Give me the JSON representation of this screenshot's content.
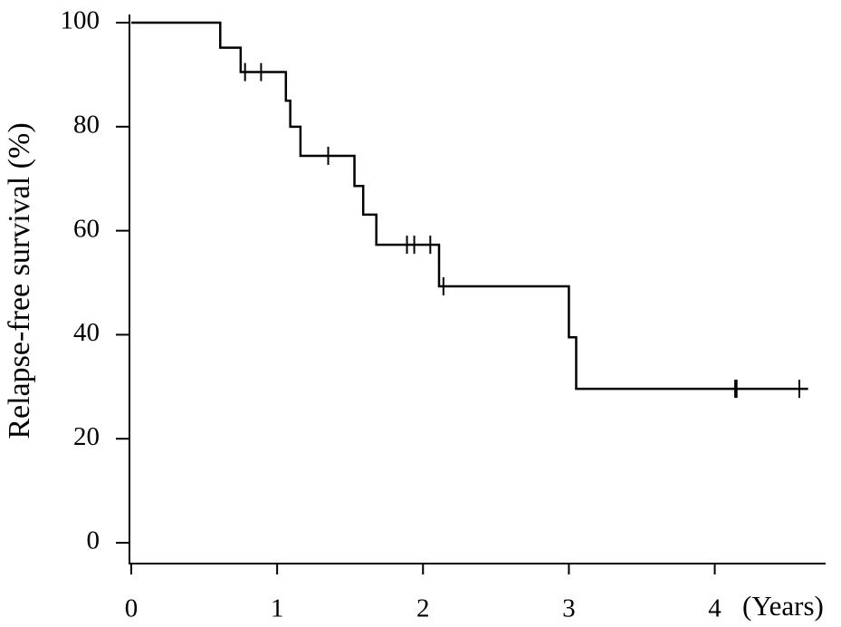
{
  "chart_data": {
    "type": "step",
    "ylabel": "Relapse-free survival (%)",
    "xlabel": "(Years)",
    "xlim": [
      0,
      4.76
    ],
    "ylim": [
      -4,
      101.5
    ],
    "xticks": [
      0,
      1,
      2,
      3,
      4
    ],
    "yticks": [
      0,
      20,
      40,
      60,
      80,
      100
    ],
    "color": "#000000",
    "x": [
      0,
      0.61,
      0.75,
      1.06,
      1.09,
      1.16,
      1.53,
      1.59,
      1.68,
      2.11,
      3.0,
      3.05,
      4.64
    ],
    "y": [
      100,
      95.2,
      90.5,
      85.0,
      80.0,
      74.4,
      68.6,
      63.1,
      57.3,
      49.3,
      39.5,
      29.6,
      29.6
    ],
    "censored": {
      "x": [
        0.78,
        0.89,
        1.35,
        1.89,
        1.94,
        2.05,
        2.14,
        4.14,
        4.15,
        4.58
      ],
      "y": [
        90.5,
        90.5,
        74.4,
        57.3,
        57.3,
        57.3,
        49.3,
        29.6,
        29.6,
        29.6
      ]
    }
  }
}
